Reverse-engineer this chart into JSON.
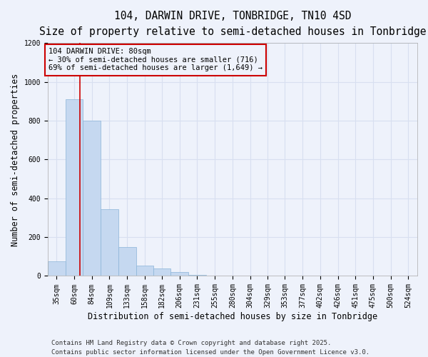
{
  "title1": "104, DARWIN DRIVE, TONBRIDGE, TN10 4SD",
  "title2": "Size of property relative to semi-detached houses in Tonbridge",
  "xlabel": "Distribution of semi-detached houses by size in Tonbridge",
  "ylabel": "Number of semi-detached properties",
  "footnote1": "Contains HM Land Registry data © Crown copyright and database right 2025.",
  "footnote2": "Contains public sector information licensed under the Open Government Licence v3.0.",
  "annotation_line1": "104 DARWIN DRIVE: 80sqm",
  "annotation_line2": "← 30% of semi-detached houses are smaller (716)",
  "annotation_line3": "69% of semi-detached houses are larger (1,649) →",
  "property_size": 80,
  "categories": [
    "35sqm",
    "60sqm",
    "84sqm",
    "109sqm",
    "133sqm",
    "158sqm",
    "182sqm",
    "206sqm",
    "231sqm",
    "255sqm",
    "280sqm",
    "304sqm",
    "329sqm",
    "353sqm",
    "377sqm",
    "402sqm",
    "426sqm",
    "451sqm",
    "475sqm",
    "500sqm",
    "524sqm"
  ],
  "bin_edges": [
    35,
    60,
    84,
    109,
    133,
    158,
    182,
    206,
    231,
    255,
    280,
    304,
    329,
    353,
    377,
    402,
    426,
    451,
    475,
    500,
    524,
    549
  ],
  "values": [
    75,
    910,
    800,
    345,
    150,
    55,
    40,
    20,
    5,
    3,
    2,
    0,
    0,
    0,
    1,
    0,
    0,
    0,
    0,
    0,
    0
  ],
  "bar_color": "#c5d8f0",
  "bar_edge_color": "#8ab4d8",
  "red_line_color": "#cc0000",
  "annotation_box_color": "#cc0000",
  "ylim": [
    0,
    1200
  ],
  "yticks": [
    0,
    200,
    400,
    600,
    800,
    1000,
    1200
  ],
  "background_color": "#eef2fb",
  "grid_color": "#d8dff0",
  "title_fontsize": 10.5,
  "subtitle_fontsize": 9.5,
  "axis_label_fontsize": 8.5,
  "tick_fontsize": 7,
  "annotation_fontsize": 7.5,
  "footnote_fontsize": 6.5
}
